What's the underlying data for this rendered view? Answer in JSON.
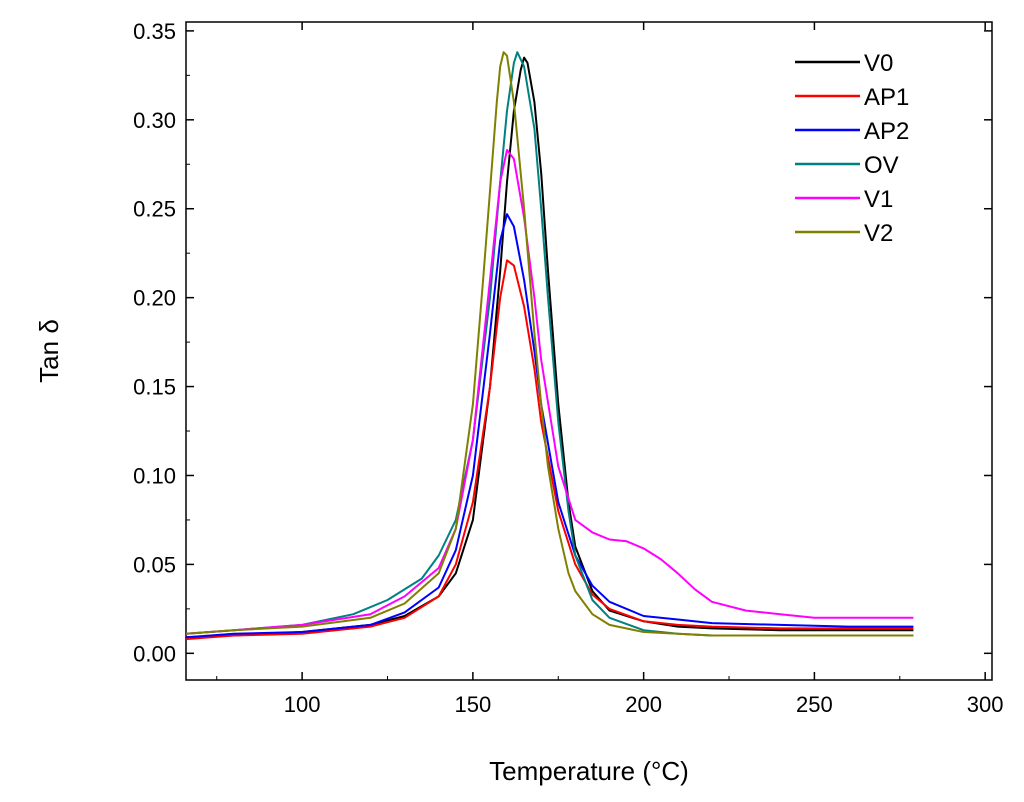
{
  "chart_data": {
    "type": "line",
    "title": "",
    "xlabel": "Temperature (°C)",
    "ylabel": "Tan δ",
    "xlim": [
      66,
      302
    ],
    "ylim": [
      -0.015,
      0.355
    ],
    "xticks": [
      100,
      150,
      200,
      250,
      300
    ],
    "xtick_labels": [
      "100",
      "150",
      "200",
      "250",
      "300"
    ],
    "yticks": [
      0.0,
      0.05,
      0.1,
      0.15,
      0.2,
      0.25,
      0.3,
      0.35
    ],
    "ytick_labels": [
      "0.00",
      "0.05",
      "0.10",
      "0.15",
      "0.20",
      "0.25",
      "0.30",
      "0.35"
    ],
    "grid": false,
    "legend_position": "top-right",
    "series": [
      {
        "name": "V0",
        "color": "#000000",
        "x": [
          66,
          80,
          100,
          120,
          130,
          140,
          145,
          150,
          155,
          158,
          160,
          162,
          164,
          165,
          166,
          168,
          170,
          172,
          175,
          178,
          180,
          185,
          190,
          200,
          210,
          220,
          240,
          260,
          279
        ],
        "y": [
          0.009,
          0.01,
          0.012,
          0.016,
          0.021,
          0.032,
          0.045,
          0.075,
          0.15,
          0.215,
          0.265,
          0.305,
          0.328,
          0.335,
          0.332,
          0.31,
          0.27,
          0.215,
          0.14,
          0.085,
          0.06,
          0.035,
          0.024,
          0.018,
          0.015,
          0.014,
          0.013,
          0.013,
          0.013
        ]
      },
      {
        "name": "AP1",
        "color": "#ff0000",
        "x": [
          66,
          80,
          100,
          120,
          130,
          140,
          145,
          150,
          155,
          158,
          160,
          162,
          165,
          168,
          170,
          175,
          180,
          185,
          190,
          200,
          210,
          220,
          240,
          260,
          279
        ],
        "y": [
          0.008,
          0.01,
          0.011,
          0.015,
          0.02,
          0.032,
          0.05,
          0.085,
          0.15,
          0.2,
          0.221,
          0.218,
          0.195,
          0.16,
          0.13,
          0.08,
          0.05,
          0.033,
          0.025,
          0.018,
          0.016,
          0.015,
          0.014,
          0.014,
          0.014
        ]
      },
      {
        "name": "AP2",
        "color": "#0000ff",
        "x": [
          66,
          80,
          100,
          120,
          130,
          140,
          145,
          150,
          155,
          158,
          160,
          162,
          165,
          168,
          170,
          175,
          180,
          185,
          190,
          200,
          210,
          220,
          240,
          260,
          279
        ],
        "y": [
          0.009,
          0.011,
          0.012,
          0.016,
          0.023,
          0.037,
          0.058,
          0.1,
          0.18,
          0.232,
          0.247,
          0.24,
          0.21,
          0.17,
          0.14,
          0.085,
          0.055,
          0.038,
          0.029,
          0.021,
          0.019,
          0.017,
          0.016,
          0.015,
          0.015
        ]
      },
      {
        "name": "OV",
        "color": "#008080",
        "x": [
          66,
          80,
          100,
          115,
          125,
          135,
          140,
          145,
          150,
          155,
          158,
          160,
          162,
          163,
          165,
          168,
          170,
          172,
          175,
          178,
          180,
          185,
          190,
          200,
          210,
          220,
          240,
          260,
          279
        ],
        "y": [
          0.011,
          0.013,
          0.016,
          0.022,
          0.03,
          0.042,
          0.055,
          0.075,
          0.12,
          0.2,
          0.265,
          0.305,
          0.332,
          0.338,
          0.33,
          0.295,
          0.25,
          0.2,
          0.13,
          0.08,
          0.055,
          0.03,
          0.02,
          0.013,
          0.011,
          0.01,
          0.01,
          0.01,
          0.01
        ]
      },
      {
        "name": "V1",
        "color": "#ff00ff",
        "x": [
          66,
          80,
          100,
          120,
          130,
          140,
          145,
          150,
          155,
          158,
          160,
          162,
          165,
          168,
          170,
          175,
          180,
          185,
          190,
          195,
          200,
          205,
          210,
          215,
          220,
          230,
          240,
          250,
          260,
          270,
          279
        ],
        "y": [
          0.011,
          0.013,
          0.016,
          0.022,
          0.032,
          0.048,
          0.07,
          0.12,
          0.21,
          0.265,
          0.283,
          0.278,
          0.245,
          0.2,
          0.165,
          0.105,
          0.075,
          0.068,
          0.064,
          0.063,
          0.059,
          0.053,
          0.045,
          0.036,
          0.029,
          0.024,
          0.022,
          0.02,
          0.02,
          0.02,
          0.02
        ]
      },
      {
        "name": "V2",
        "color": "#808000",
        "x": [
          66,
          80,
          100,
          120,
          130,
          140,
          145,
          150,
          153,
          155,
          157,
          158,
          159,
          160,
          162,
          165,
          168,
          170,
          172,
          175,
          178,
          180,
          185,
          190,
          200,
          210,
          220,
          240,
          260,
          279
        ],
        "y": [
          0.011,
          0.013,
          0.015,
          0.02,
          0.028,
          0.045,
          0.07,
          0.14,
          0.21,
          0.26,
          0.31,
          0.33,
          0.338,
          0.336,
          0.31,
          0.25,
          0.18,
          0.14,
          0.105,
          0.07,
          0.045,
          0.035,
          0.022,
          0.016,
          0.012,
          0.011,
          0.01,
          0.01,
          0.01,
          0.01
        ]
      }
    ]
  }
}
